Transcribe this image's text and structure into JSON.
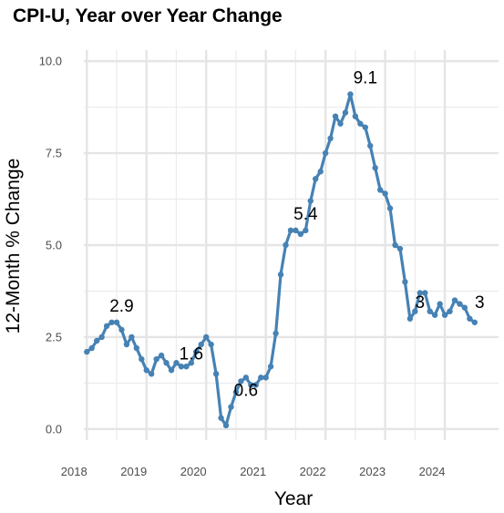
{
  "chart_data": {
    "type": "line",
    "title": "CPI-U, Year over Year Change",
    "xlabel": "Year",
    "ylabel": "12-Month % Change",
    "x_ticks": [
      "2018",
      "2019",
      "2020",
      "2021",
      "2022",
      "2023",
      "2024"
    ],
    "y_ticks": [
      "0.0",
      "2.5",
      "5.0",
      "7.5",
      "10.0"
    ],
    "ylim": [
      -0.3,
      10.3
    ],
    "xlim": [
      2017.95,
      2024.9
    ],
    "grid": true,
    "line_color": "#4682B4",
    "x": [
      2018.0,
      2018.083,
      2018.167,
      2018.25,
      2018.333,
      2018.417,
      2018.5,
      2018.583,
      2018.667,
      2018.75,
      2018.833,
      2018.917,
      2019.0,
      2019.083,
      2019.167,
      2019.25,
      2019.333,
      2019.417,
      2019.5,
      2019.583,
      2019.667,
      2019.75,
      2019.833,
      2019.917,
      2020.0,
      2020.083,
      2020.167,
      2020.25,
      2020.333,
      2020.417,
      2020.5,
      2020.583,
      2020.667,
      2020.75,
      2020.833,
      2020.917,
      2021.0,
      2021.083,
      2021.167,
      2021.25,
      2021.333,
      2021.417,
      2021.5,
      2021.583,
      2021.667,
      2021.75,
      2021.833,
      2021.917,
      2022.0,
      2022.083,
      2022.167,
      2022.25,
      2022.333,
      2022.417,
      2022.5,
      2022.583,
      2022.667,
      2022.75,
      2022.833,
      2022.917,
      2023.0,
      2023.083,
      2023.167,
      2023.25,
      2023.333,
      2023.417,
      2023.5,
      2023.583,
      2023.667,
      2023.75,
      2023.833,
      2023.917,
      2024.0,
      2024.083,
      2024.167,
      2024.25,
      2024.333,
      2024.417,
      2024.5,
      2024.583,
      2024.667
    ],
    "values": [
      2.1,
      2.2,
      2.4,
      2.5,
      2.8,
      2.9,
      2.9,
      2.7,
      2.3,
      2.5,
      2.2,
      1.9,
      1.6,
      1.5,
      1.9,
      2.0,
      1.8,
      1.6,
      1.8,
      1.7,
      1.7,
      1.8,
      2.1,
      2.3,
      2.5,
      2.3,
      1.5,
      0.3,
      0.1,
      0.6,
      1.0,
      1.3,
      1.4,
      1.2,
      1.2,
      1.4,
      1.4,
      1.7,
      2.6,
      4.2,
      5.0,
      5.4,
      5.4,
      5.3,
      5.4,
      6.2,
      6.8,
      7.0,
      7.5,
      7.9,
      8.5,
      8.3,
      8.6,
      9.1,
      8.5,
      8.3,
      8.2,
      7.7,
      7.1,
      6.5,
      6.4,
      6.0,
      5.0,
      4.9,
      4.0,
      3.0,
      3.2,
      3.7,
      3.7,
      3.2,
      3.1,
      3.4,
      3.1,
      3.2,
      3.5,
      3.4,
      3.3,
      3.0,
      2.9,
      null,
      null
    ],
    "annotations": [
      {
        "text": "2.9",
        "x": 2018.583,
        "y": 2.9
      },
      {
        "text": "1.6",
        "x": 2019.75,
        "y": 1.6
      },
      {
        "text": "0.6",
        "x": 2020.667,
        "y": 0.6
      },
      {
        "text": "5.4",
        "x": 2021.667,
        "y": 5.4
      },
      {
        "text": "9.1",
        "x": 2022.667,
        "y": 9.1
      },
      {
        "text": "3",
        "x": 2023.583,
        "y": 3.0
      },
      {
        "text": "3",
        "x": 2024.583,
        "y": 3.0
      }
    ]
  }
}
